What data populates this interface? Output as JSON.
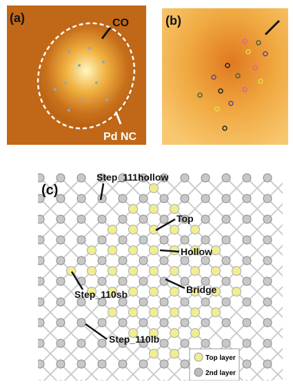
{
  "panel_a": {
    "label": "(a)",
    "annotations": [
      "CO",
      "Pd NC"
    ]
  },
  "panel_b": {
    "label": "(b)"
  },
  "panel_c": {
    "label": "(c)",
    "sites": [
      "Step_111hollow",
      "Top",
      "Hollow",
      "Bridge",
      "Step_110sb",
      "Step_110lb"
    ],
    "legend": [
      "Top layer",
      "2nd layer"
    ]
  }
}
